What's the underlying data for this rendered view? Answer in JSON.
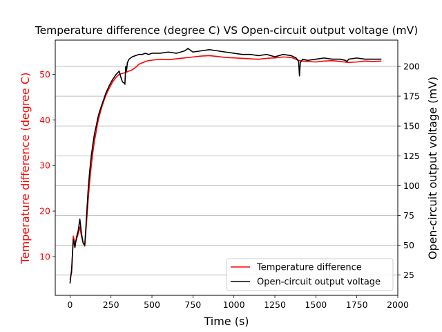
{
  "chart_data": {
    "type": "line",
    "title": "Temperature difference (degree C) VS Open-circuit output voltage (mV)",
    "xlabel": "Time (s)",
    "ylabel_left": "Temperature difference (degree C)",
    "ylabel_right": "Open-circuit output voltage (mV)",
    "xlim": [
      -90,
      2000
    ],
    "ylim_left": [
      1.5,
      57.5
    ],
    "ylim_right": [
      8,
      222
    ],
    "xticks": [
      0,
      250,
      500,
      750,
      1000,
      1250,
      1500,
      1750,
      2000
    ],
    "yticks_left": [
      10,
      20,
      30,
      40,
      50
    ],
    "yticks_right": [
      25,
      50,
      75,
      100,
      125,
      150,
      175,
      200
    ],
    "grid": "horizontal lines at right-axis ticks",
    "legend_position": "lower right",
    "series": [
      {
        "name": "Temperature difference",
        "axis": "left",
        "color": "#ff0000",
        "x": [
          0,
          10,
          20,
          30,
          40,
          50,
          60,
          70,
          80,
          90,
          100,
          110,
          120,
          130,
          140,
          150,
          160,
          170,
          180,
          190,
          200,
          220,
          240,
          260,
          280,
          300,
          320,
          340,
          360,
          380,
          400,
          420,
          440,
          460,
          480,
          500,
          550,
          600,
          650,
          700,
          750,
          800,
          850,
          900,
          950,
          1000,
          1050,
          1100,
          1150,
          1200,
          1250,
          1300,
          1350,
          1400,
          1450,
          1500,
          1550,
          1600,
          1650,
          1700,
          1750,
          1800,
          1850,
          1900
        ],
        "y": [
          5.0,
          6.5,
          14.5,
          13.0,
          13.8,
          15.0,
          16.5,
          14.5,
          13.0,
          12.3,
          17.0,
          22.0,
          26.5,
          30.0,
          33.0,
          35.5,
          37.5,
          39.5,
          41.0,
          42.3,
          43.5,
          45.5,
          47.0,
          48.3,
          49.3,
          50.0,
          50.2,
          50.4,
          50.7,
          51.0,
          51.5,
          52.2,
          52.5,
          52.8,
          53.0,
          53.1,
          53.3,
          53.2,
          53.4,
          53.6,
          53.8,
          54.0,
          54.1,
          53.9,
          53.7,
          53.6,
          53.5,
          53.4,
          53.3,
          53.5,
          53.6,
          53.8,
          53.7,
          53.0,
          52.8,
          52.7,
          52.9,
          53.0,
          52.8,
          52.6,
          52.7,
          52.9,
          52.8,
          52.9
        ]
      },
      {
        "name": "Open-circuit output voltage",
        "axis": "right",
        "color": "#000000",
        "x": [
          0,
          10,
          20,
          30,
          40,
          50,
          60,
          70,
          80,
          90,
          100,
          110,
          120,
          130,
          140,
          150,
          160,
          170,
          180,
          190,
          200,
          220,
          240,
          260,
          280,
          300,
          310,
          320,
          330,
          335,
          340,
          345,
          350,
          360,
          380,
          400,
          420,
          440,
          460,
          480,
          500,
          550,
          600,
          650,
          700,
          720,
          750,
          800,
          850,
          900,
          950,
          1000,
          1050,
          1100,
          1150,
          1200,
          1250,
          1300,
          1350,
          1380,
          1395,
          1400,
          1405,
          1420,
          1450,
          1500,
          1550,
          1600,
          1650,
          1680,
          1690,
          1700,
          1750,
          1800,
          1850,
          1900
        ],
        "y": [
          18,
          30,
          55,
          48,
          57,
          62,
          72,
          60,
          52,
          50,
          72,
          95,
          112,
          125,
          135,
          144,
          150,
          157,
          162,
          166,
          170,
          178,
          184,
          189,
          193,
          196,
          191,
          187,
          186,
          185,
          200,
          196,
          203,
          206,
          208,
          209,
          210,
          210,
          211,
          210,
          211,
          211,
          212,
          211,
          213,
          215,
          212,
          213,
          214,
          213,
          212,
          211,
          210,
          210,
          209,
          210,
          208,
          210,
          209,
          207,
          204,
          192,
          203,
          206,
          205,
          206,
          207,
          206,
          206,
          205,
          204,
          206,
          207,
          206,
          206,
          206
        ]
      }
    ]
  }
}
